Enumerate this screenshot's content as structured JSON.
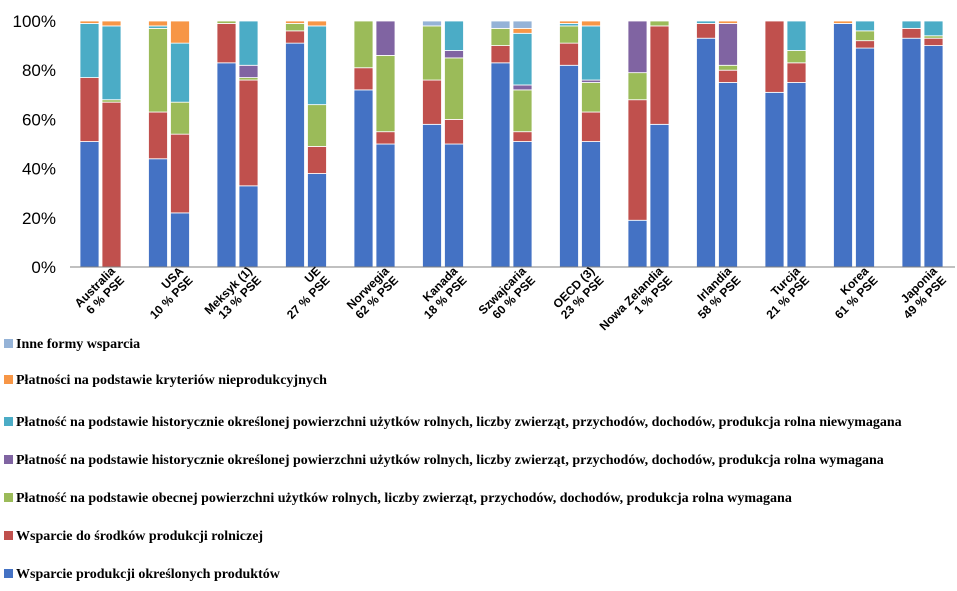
{
  "chart_data": {
    "type": "bar",
    "stacked": true,
    "ylim": [
      0,
      100
    ],
    "yticks": [
      "0%",
      "20%",
      "40%",
      "60%",
      "80%",
      "100%"
    ],
    "grid": false,
    "legend_position": "bottom",
    "groups": [
      {
        "name": "Australia",
        "bars": [
          {
            "label": "",
            "values": [
              51,
              26,
              0,
              0,
              22,
              1,
              0
            ]
          },
          {
            "label": "6 % PSE",
            "values": [
              0,
              67,
              1,
              0,
              30,
              2,
              0
            ]
          }
        ]
      },
      {
        "name": "USA",
        "bars": [
          {
            "label": "",
            "values": [
              44,
              19,
              34,
              0,
              1,
              2,
              0
            ]
          },
          {
            "label": "10 % PSE",
            "values": [
              22,
              32,
              13,
              0,
              24,
              9,
              0
            ]
          }
        ]
      },
      {
        "name": "Meksyk (1)",
        "bars": [
          {
            "label": "",
            "values": [
              83,
              16,
              1,
              0,
              0,
              0,
              0
            ]
          },
          {
            "label": "13 % PSE",
            "values": [
              33,
              43,
              1,
              5,
              18,
              0,
              0
            ]
          }
        ]
      },
      {
        "name": "UE",
        "bars": [
          {
            "label": "",
            "values": [
              91,
              5,
              3,
              0,
              0,
              1,
              0
            ]
          },
          {
            "label": "27 % PSE",
            "values": [
              38,
              11,
              17,
              0,
              32,
              2,
              0
            ]
          }
        ]
      },
      {
        "name": "Norwegia",
        "bars": [
          {
            "label": "",
            "values": [
              72,
              9,
              19,
              0,
              0,
              0,
              0
            ]
          },
          {
            "label": "62 % PSE",
            "values": [
              50,
              5,
              31,
              14,
              0,
              0,
              0
            ]
          }
        ]
      },
      {
        "name": "Kanada",
        "bars": [
          {
            "label": "",
            "values": [
              58,
              18,
              22,
              0,
              0,
              0,
              2
            ]
          },
          {
            "label": "18 % PSE",
            "values": [
              50,
              10,
              25,
              3,
              12,
              0,
              0
            ]
          }
        ]
      },
      {
        "name": "Szwajcaria",
        "bars": [
          {
            "label": "",
            "values": [
              83,
              7,
              7,
              0,
              0,
              0,
              3
            ]
          },
          {
            "label": "60 % PSE",
            "values": [
              51,
              4,
              17,
              2,
              21,
              2,
              3
            ]
          }
        ]
      },
      {
        "name": "OECD (3)",
        "bars": [
          {
            "label": "",
            "values": [
              82,
              9,
              7,
              0,
              1,
              1,
              0
            ]
          },
          {
            "label": "23 % PSE",
            "values": [
              51,
              12,
              12,
              1,
              22,
              2,
              0
            ]
          }
        ]
      },
      {
        "name": "Nowa Zelandia",
        "bars": [
          {
            "label": "",
            "values": [
              19,
              49,
              11,
              21,
              0,
              0,
              0
            ]
          },
          {
            "label": "1 % PSE",
            "values": [
              58,
              40,
              2,
              0,
              0,
              0,
              0
            ]
          }
        ]
      },
      {
        "name": "Irlandia",
        "bars": [
          {
            "label": "",
            "values": [
              93,
              6,
              0,
              0,
              1,
              0,
              0
            ]
          },
          {
            "label": "58 % PSE",
            "values": [
              75,
              5,
              2,
              17,
              0,
              1,
              0
            ]
          }
        ]
      },
      {
        "name": "Turcja",
        "bars": [
          {
            "label": "",
            "values": [
              71,
              29,
              0,
              0,
              0,
              0,
              0
            ]
          },
          {
            "label": "21 % PSE",
            "values": [
              75,
              8,
              5,
              0,
              12,
              0,
              0
            ]
          }
        ]
      },
      {
        "name": "Korea",
        "bars": [
          {
            "label": "",
            "values": [
              99,
              0,
              0,
              0,
              0,
              1,
              0
            ]
          },
          {
            "label": "61 % PSE",
            "values": [
              89,
              3,
              4,
              0,
              4,
              0,
              0
            ]
          }
        ]
      },
      {
        "name": "Japonia",
        "bars": [
          {
            "label": "",
            "values": [
              93,
              4,
              0,
              0,
              3,
              0,
              0
            ]
          },
          {
            "label": "49 % PSE",
            "values": [
              90,
              3,
              1,
              0,
              6,
              0,
              0
            ]
          }
        ]
      }
    ],
    "series": [
      {
        "name": "Wsparcie produkcji określonych produktów",
        "color": "#4472C4"
      },
      {
        "name": "Wsparcie do  środków produkcji rolniczej",
        "color": "#C0504D"
      },
      {
        "name": "Płatność na podstawie obecnej  powierzchni użytków rolnych, liczby zwierząt, przychodów, dochodów, produkcja rolna wymagana",
        "color": "#9BBB59"
      },
      {
        "name": "Płatność na podstawie historycznie określonej powierzchni użytków rolnych, liczby zwierząt, przychodów, dochodów, produkcja rolna wymagana",
        "color": "#8064A2"
      },
      {
        "name": "Płatność na podstawie historycznie określonej powierzchni użytków rolnych, liczby zwierząt, przychodów, dochodów, produkcja rolna niewymagana",
        "color": "#4BACC6"
      },
      {
        "name": "Płatności na podstawie kryteriów nieprodukcyjnych",
        "color": "#F79646"
      },
      {
        "name": "Inne formy wsparcia",
        "color": "#95B3D7"
      }
    ],
    "legend_order": [
      6,
      5,
      4,
      3,
      2,
      1,
      0
    ]
  }
}
